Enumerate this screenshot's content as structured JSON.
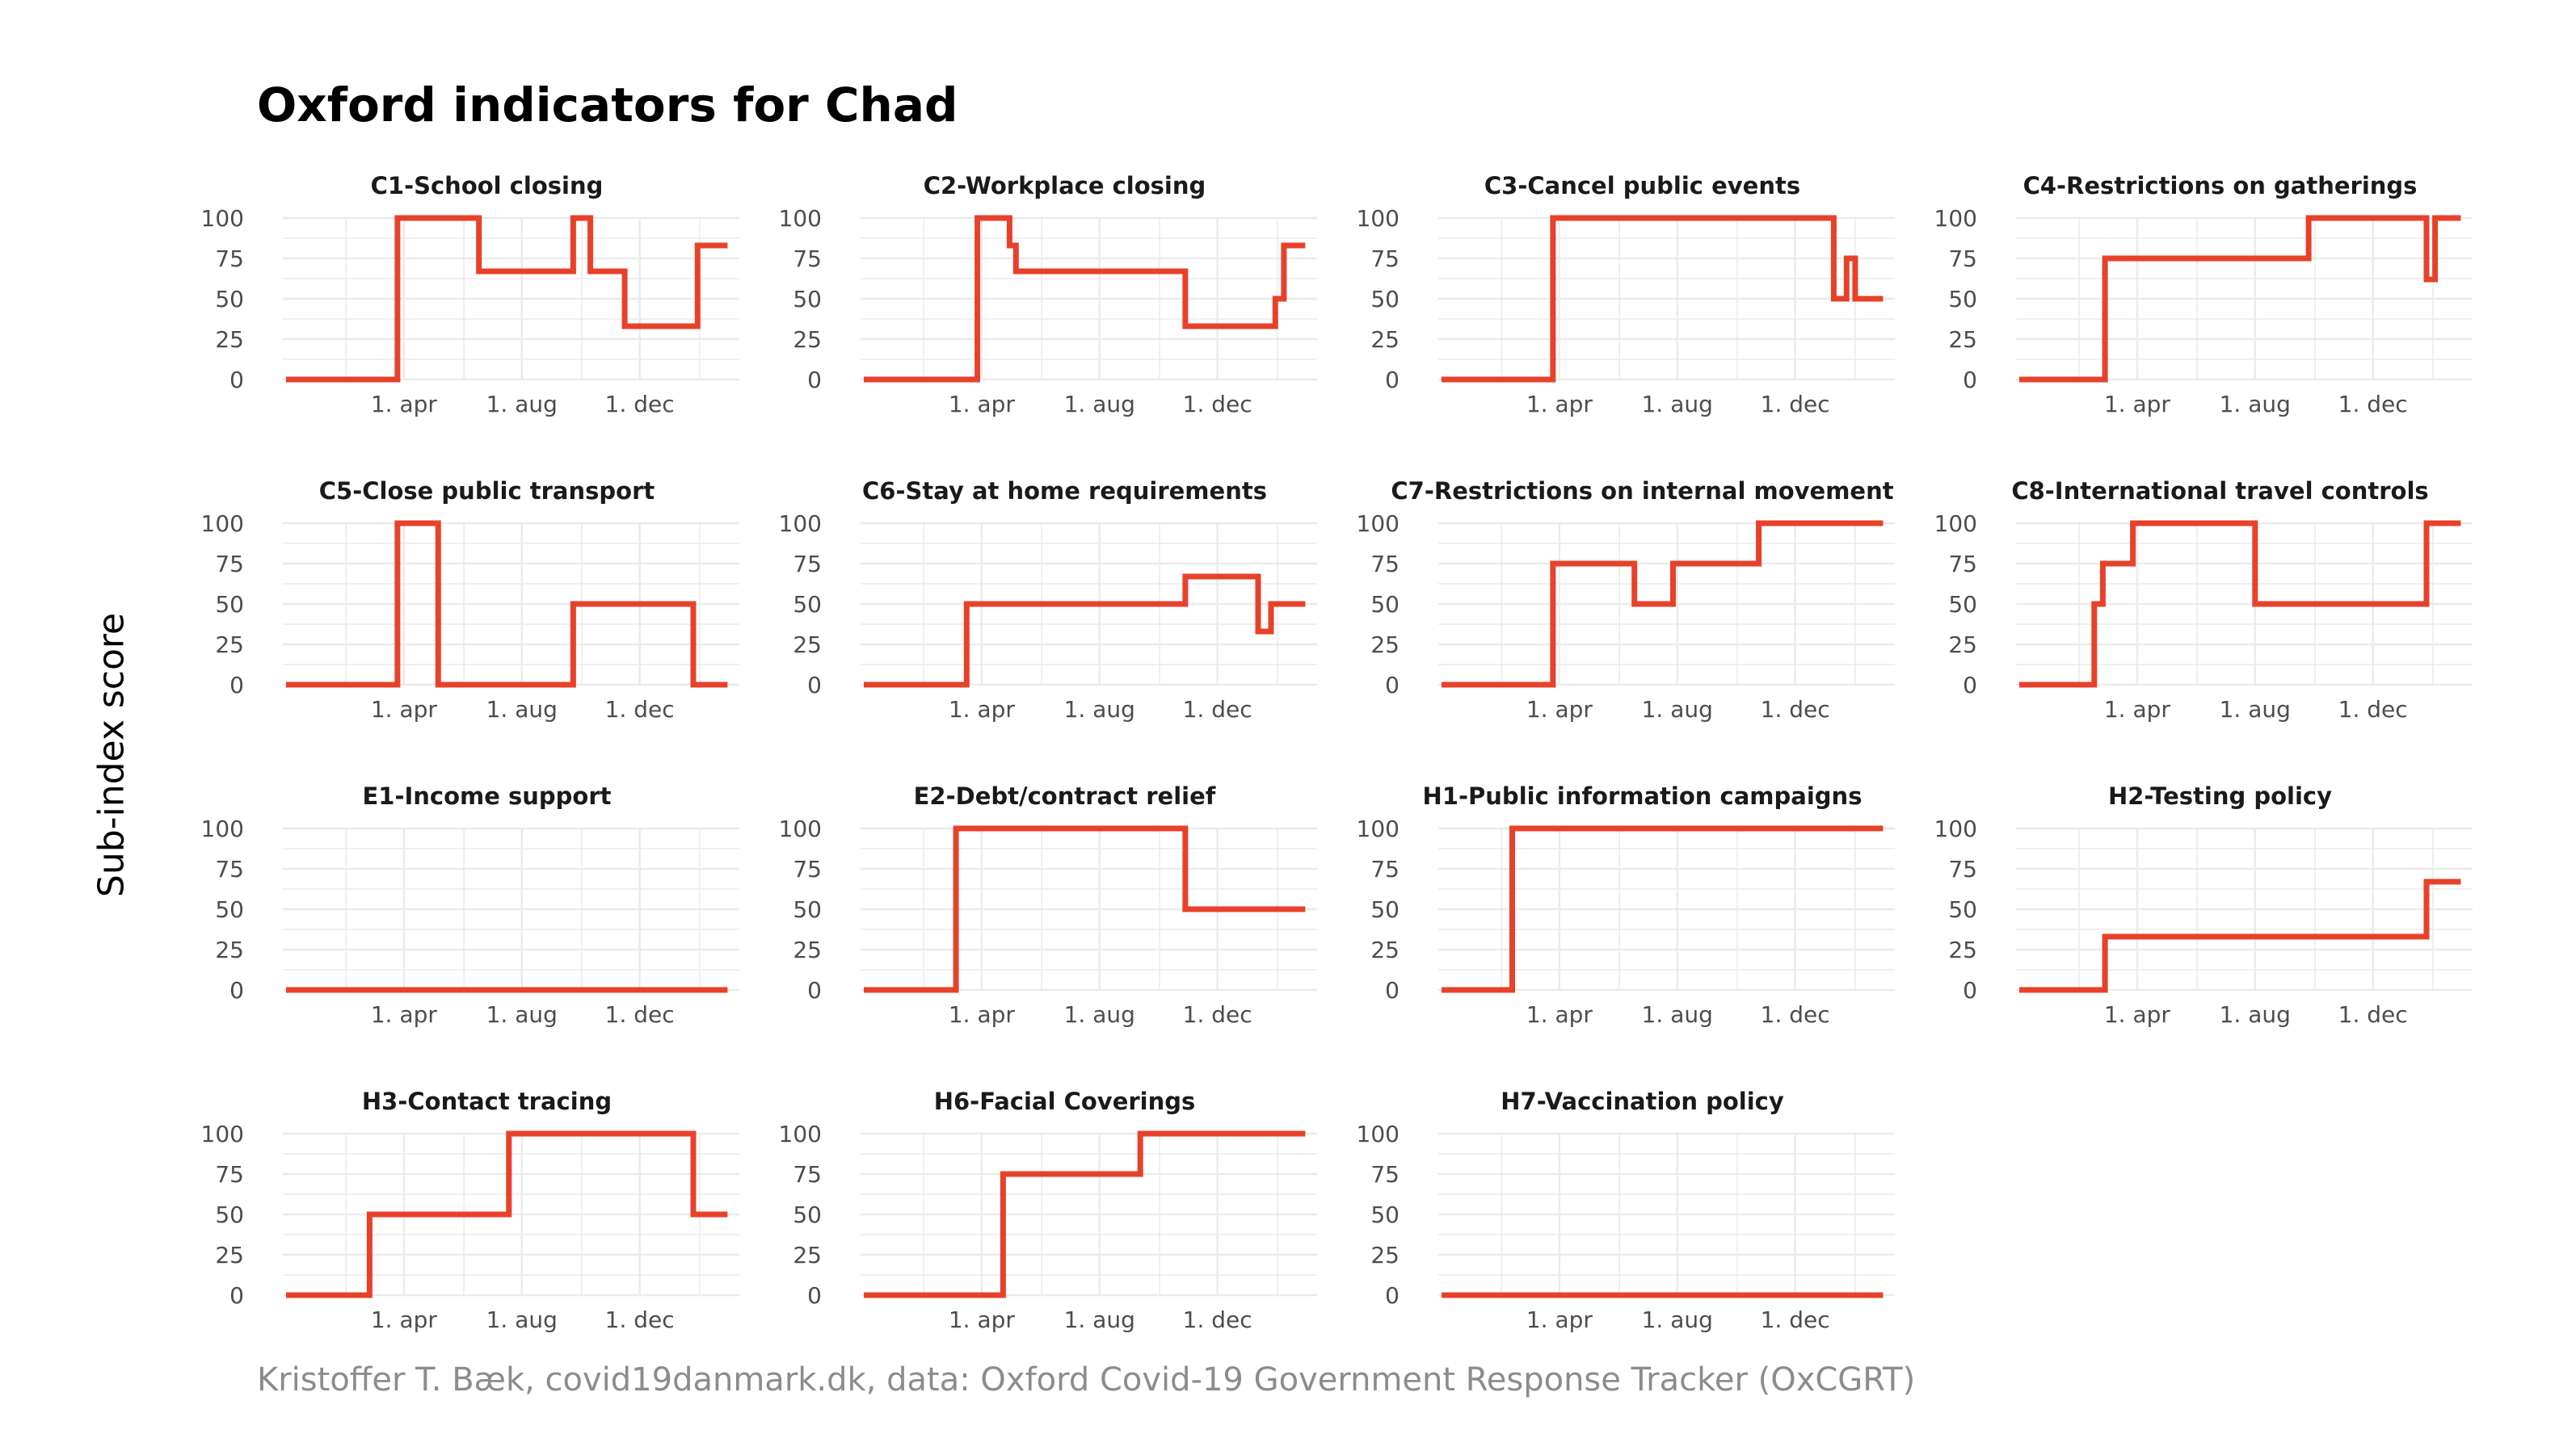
{
  "title": "Oxford indicators for Chad",
  "ylabel": "Sub-index score",
  "caption": "Kristoffer T. Bæk, covid19danmark.dk, data: Oxford Covid-19 Government Response Tracker (OxCGRT)",
  "colors": {
    "line": "#e8412a",
    "grid": "#ebebeb",
    "text": "#4d4d4d"
  },
  "chart_data": [
    {
      "type": "line",
      "title": "C1-School closing",
      "yticks": [
        0,
        25,
        50,
        75,
        100
      ],
      "xtick_labels": [
        "1. apr",
        "1. aug",
        "1. dec"
      ],
      "ylim": [
        0,
        100
      ],
      "x": [
        0,
        52,
        52,
        90,
        90,
        134,
        134,
        142,
        142,
        158,
        158,
        192,
        192,
        206
      ],
      "y": [
        0,
        0,
        100,
        100,
        67,
        67,
        100,
        100,
        67,
        67,
        33,
        33,
        83,
        83
      ]
    },
    {
      "type": "line",
      "title": "C2-Workplace closing",
      "yticks": [
        0,
        25,
        50,
        75,
        100
      ],
      "xtick_labels": [
        "1. apr",
        "1. aug",
        "1. dec"
      ],
      "ylim": [
        0,
        100
      ],
      "x": [
        0,
        53,
        53,
        68,
        68,
        71,
        71,
        150,
        150,
        192,
        192,
        196,
        196,
        206
      ],
      "y": [
        0,
        0,
        100,
        100,
        83,
        83,
        67,
        67,
        33,
        33,
        50,
        50,
        83,
        83
      ]
    },
    {
      "type": "line",
      "title": "C3-Cancel public events",
      "yticks": [
        0,
        25,
        50,
        75,
        100
      ],
      "xtick_labels": [
        "1. apr",
        "1. aug",
        "1. dec"
      ],
      "ylim": [
        0,
        100
      ],
      "x": [
        0,
        52,
        52,
        183,
        183,
        189,
        189,
        193,
        193,
        206
      ],
      "y": [
        0,
        0,
        100,
        100,
        50,
        50,
        75,
        75,
        50,
        50
      ]
    },
    {
      "type": "line",
      "title": "C4-Restrictions on gatherings",
      "yticks": [
        0,
        25,
        50,
        75,
        100
      ],
      "xtick_labels": [
        "1. apr",
        "1. aug",
        "1. dec"
      ],
      "ylim": [
        0,
        100
      ],
      "x": [
        0,
        40,
        40,
        135,
        135,
        190,
        190,
        194,
        194,
        206
      ],
      "y": [
        0,
        0,
        75,
        75,
        100,
        100,
        62,
        62,
        100,
        100
      ]
    },
    {
      "type": "line",
      "title": "C5-Close public transport",
      "yticks": [
        0,
        25,
        50,
        75,
        100
      ],
      "xtick_labels": [
        "1. apr",
        "1. aug",
        "1. dec"
      ],
      "ylim": [
        0,
        100
      ],
      "x": [
        0,
        52,
        52,
        71,
        71,
        134,
        134,
        190,
        190,
        206
      ],
      "y": [
        0,
        0,
        100,
        100,
        0,
        0,
        50,
        50,
        0,
        0
      ]
    },
    {
      "type": "line",
      "title": "C6-Stay at home requirements",
      "yticks": [
        0,
        25,
        50,
        75,
        100
      ],
      "xtick_labels": [
        "1. apr",
        "1. aug",
        "1. dec"
      ],
      "ylim": [
        0,
        100
      ],
      "x": [
        0,
        48,
        48,
        150,
        150,
        184,
        184,
        190,
        190,
        206
      ],
      "y": [
        0,
        0,
        50,
        50,
        67,
        67,
        33,
        33,
        50,
        50
      ]
    },
    {
      "type": "line",
      "title": "C7-Restrictions on internal movement",
      "yticks": [
        0,
        25,
        50,
        75,
        100
      ],
      "xtick_labels": [
        "1. apr",
        "1. aug",
        "1. dec"
      ],
      "ylim": [
        0,
        100
      ],
      "x": [
        0,
        52,
        52,
        90,
        90,
        108,
        108,
        148,
        148,
        206
      ],
      "y": [
        0,
        0,
        75,
        75,
        50,
        50,
        75,
        75,
        100,
        100
      ]
    },
    {
      "type": "line",
      "title": "C8-International travel controls",
      "yticks": [
        0,
        25,
        50,
        75,
        100
      ],
      "xtick_labels": [
        "1. apr",
        "1. aug",
        "1. dec"
      ],
      "ylim": [
        0,
        100
      ],
      "x": [
        0,
        35,
        35,
        39,
        39,
        53,
        53,
        110,
        110,
        190,
        190,
        206
      ],
      "y": [
        0,
        0,
        50,
        50,
        75,
        75,
        100,
        100,
        50,
        50,
        100,
        100
      ]
    },
    {
      "type": "line",
      "title": "E1-Income support",
      "yticks": [
        0,
        25,
        50,
        75,
        100
      ],
      "xtick_labels": [
        "1. apr",
        "1. aug",
        "1. dec"
      ],
      "ylim": [
        0,
        100
      ],
      "x": [
        0,
        206
      ],
      "y": [
        0,
        0
      ]
    },
    {
      "type": "line",
      "title": "E2-Debt/contract relief",
      "yticks": [
        0,
        25,
        50,
        75,
        100
      ],
      "xtick_labels": [
        "1. apr",
        "1. aug",
        "1. dec"
      ],
      "ylim": [
        0,
        100
      ],
      "x": [
        0,
        43,
        43,
        150,
        150,
        206
      ],
      "y": [
        0,
        0,
        100,
        100,
        50,
        50
      ]
    },
    {
      "type": "line",
      "title": "H1-Public information campaigns",
      "yticks": [
        0,
        25,
        50,
        75,
        100
      ],
      "xtick_labels": [
        "1. apr",
        "1. aug",
        "1. dec"
      ],
      "ylim": [
        0,
        100
      ],
      "x": [
        0,
        33,
        33,
        206
      ],
      "y": [
        0,
        0,
        100,
        100
      ]
    },
    {
      "type": "line",
      "title": "H2-Testing policy",
      "yticks": [
        0,
        25,
        50,
        75,
        100
      ],
      "xtick_labels": [
        "1. apr",
        "1. aug",
        "1. dec"
      ],
      "ylim": [
        0,
        100
      ],
      "x": [
        0,
        40,
        40,
        190,
        190,
        206
      ],
      "y": [
        0,
        0,
        33,
        33,
        67,
        67
      ]
    },
    {
      "type": "line",
      "title": "H3-Contact tracing",
      "yticks": [
        0,
        25,
        50,
        75,
        100
      ],
      "xtick_labels": [
        "1. apr",
        "1. aug",
        "1. dec"
      ],
      "ylim": [
        0,
        100
      ],
      "x": [
        0,
        39,
        39,
        104,
        104,
        190,
        190,
        206
      ],
      "y": [
        0,
        0,
        50,
        50,
        100,
        100,
        50,
        50
      ]
    },
    {
      "type": "line",
      "title": "H6-Facial Coverings",
      "yticks": [
        0,
        25,
        50,
        75,
        100
      ],
      "xtick_labels": [
        "1. apr",
        "1. aug",
        "1. dec"
      ],
      "ylim": [
        0,
        100
      ],
      "x": [
        0,
        65,
        65,
        129,
        129,
        206
      ],
      "y": [
        0,
        0,
        75,
        75,
        100,
        100
      ]
    },
    {
      "type": "line",
      "title": "H7-Vaccination policy",
      "yticks": [
        0,
        25,
        50,
        75,
        100
      ],
      "xtick_labels": [
        "1. apr",
        "1. aug",
        "1. dec"
      ],
      "ylim": [
        0,
        100
      ],
      "x": [
        0,
        206
      ],
      "y": [
        0,
        0
      ]
    }
  ]
}
